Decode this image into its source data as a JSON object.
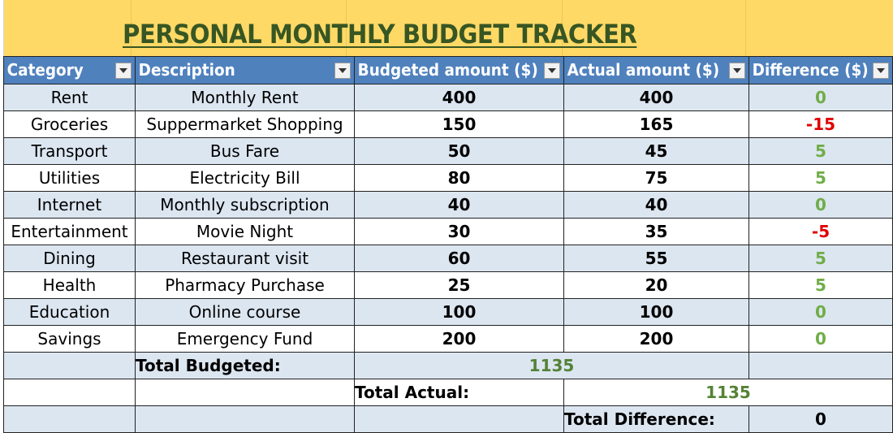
{
  "title": "PERSONAL MONTHLY BUDGET TRACKER",
  "colors": {
    "title_band": "#ffd966",
    "title_text": "#375623",
    "header": "#4f81bd",
    "band": "#dce6f1",
    "positive": "#70ad47",
    "negative": "#e00000"
  },
  "headers": [
    "Category",
    "Description",
    "Budgeted amount ($)",
    "Actual amount ($)",
    "Difference ($)"
  ],
  "filter_icon": "chevron-down-icon",
  "rows": [
    {
      "category": "Rent",
      "description": "Monthly Rent",
      "budgeted": "400",
      "actual": "400",
      "difference": "0",
      "tone": "zero"
    },
    {
      "category": "Groceries",
      "description": "Suppermarket Shopping",
      "budgeted": "150",
      "actual": "165",
      "difference": "-15",
      "tone": "neg"
    },
    {
      "category": "Transport",
      "description": "Bus Fare",
      "budgeted": "50",
      "actual": "45",
      "difference": "5",
      "tone": "pos"
    },
    {
      "category": "Utilities",
      "description": "Electricity Bill",
      "budgeted": "80",
      "actual": "75",
      "difference": "5",
      "tone": "pos"
    },
    {
      "category": "Internet",
      "description": "Monthly subscription",
      "budgeted": "40",
      "actual": "40",
      "difference": "0",
      "tone": "zero"
    },
    {
      "category": "Entertainment",
      "description": "Movie Night",
      "budgeted": "30",
      "actual": "35",
      "difference": "-5",
      "tone": "neg"
    },
    {
      "category": "Dining",
      "description": "Restaurant visit",
      "budgeted": "60",
      "actual": "55",
      "difference": "5",
      "tone": "pos"
    },
    {
      "category": "Health",
      "description": "Pharmacy Purchase",
      "budgeted": "25",
      "actual": "20",
      "difference": "5",
      "tone": "pos"
    },
    {
      "category": "Education",
      "description": "Online course",
      "budgeted": "100",
      "actual": "100",
      "difference": "0",
      "tone": "zero"
    },
    {
      "category": "Savings",
      "description": "Emergency Fund",
      "budgeted": "200",
      "actual": "200",
      "difference": "0",
      "tone": "zero"
    }
  ],
  "totals": {
    "budgeted_label": "Total Budgeted:",
    "budgeted_value": "1135",
    "actual_label": "Total Actual:",
    "actual_value": "1135",
    "difference_label": "Total Difference:",
    "difference_value": "0"
  }
}
